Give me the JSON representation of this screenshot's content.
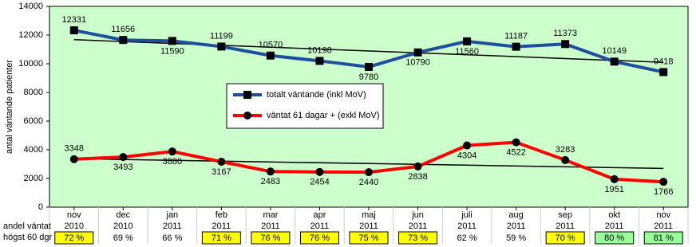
{
  "chart_data": {
    "type": "line",
    "y_label": "antal väntande patienter",
    "categories": [
      "nov",
      "dec",
      "jan",
      "feb",
      "mar",
      "apr",
      "maj",
      "jun",
      "juli",
      "aug",
      "sep",
      "okt",
      "nov"
    ],
    "category_years": [
      "2010",
      "2010",
      "2011",
      "2011",
      "2011",
      "2011",
      "2011",
      "2011",
      "2011",
      "2011",
      "2011",
      "2011",
      "2011"
    ],
    "ylim": [
      0,
      14000
    ],
    "yticks": [
      0,
      2000,
      4000,
      6000,
      8000,
      10000,
      12000,
      14000
    ],
    "grid": false,
    "background": "#ccffcc",
    "series": [
      {
        "name": "totalt väntande (inkl MoV)",
        "color": "#1f4e9c",
        "marker": "square",
        "values": [
          12331,
          11656,
          11590,
          11199,
          10570,
          10198,
          9780,
          10790,
          11560,
          11187,
          11373,
          10149,
          9418
        ],
        "trend": {
          "start": 11680,
          "end": 10100
        }
      },
      {
        "name": "väntat 61 dagar + (exkl MoV)",
        "color": "#ff0000",
        "marker": "circle",
        "values": [
          3348,
          3493,
          3880,
          3167,
          2483,
          2454,
          2440,
          2838,
          4304,
          4522,
          3283,
          1951,
          1766
        ],
        "trend": {
          "start": 3380,
          "end": 2700
        }
      }
    ],
    "share_row": {
      "label_lines": [
        "andel väntat",
        "högst 60 dgr"
      ],
      "values": [
        72,
        69,
        66,
        71,
        76,
        76,
        75,
        73,
        62,
        59,
        70,
        80,
        81
      ],
      "value_labels": [
        "72 %",
        "69 %",
        "66 %",
        "71 %",
        "76 %",
        "76 %",
        "75 %",
        "73 %",
        "62 %",
        "59 %",
        "70 %",
        "80 %",
        "81 %"
      ],
      "highlight": [
        "#ffff00",
        null,
        null,
        "#ffff00",
        "#ffff00",
        "#ffff00",
        "#ffff00",
        "#ffff00",
        null,
        null,
        "#ffff00",
        "#99ff99",
        "#99ff99"
      ]
    }
  }
}
